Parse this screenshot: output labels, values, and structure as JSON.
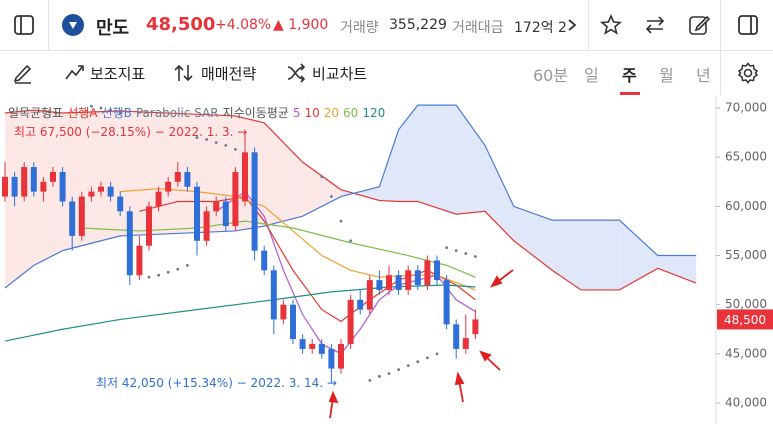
{
  "header": {
    "name": "만도",
    "price": "48,500",
    "change_pct": "+4.08%",
    "change": "▲ 1,900",
    "volume_label": "거래량",
    "volume": "355,229",
    "amount_label": "거래대금",
    "amount": "172억 2"
  },
  "toolbar": {
    "indicators": "보조지표",
    "strategy": "매매전략",
    "compare": "비교차트",
    "periods": [
      "60분",
      "일",
      "주",
      "월",
      "년"
    ],
    "selected_period": 2
  },
  "chart_data": {
    "type": "candlestick",
    "ylim": [
      38270,
      71330
    ],
    "yticks": [
      {
        "value": 40000,
        "label": "40,000"
      },
      {
        "value": 45000,
        "label": "45,000"
      },
      {
        "value": 50000,
        "label": "50,000"
      },
      {
        "value": 55000,
        "label": "55,000"
      },
      {
        "value": 60000,
        "label": "60,000"
      },
      {
        "value": 65000,
        "label": "65,000"
      },
      {
        "value": 70000,
        "label": "70,000"
      }
    ],
    "grid": false,
    "up_color": "#e8333b",
    "down_color": "#2f6fd8",
    "candles": {
      "open": [
        61000,
        63000,
        61000,
        64000,
        61500,
        62500,
        63500,
        60500,
        57000,
        61000,
        61500,
        62000,
        61000,
        59500,
        53000,
        56000,
        60000,
        61500,
        62500,
        63500,
        62000,
        56500,
        59500,
        60500,
        58000,
        60500,
        65500,
        55500,
        53500,
        48500,
        50000,
        46500,
        45500,
        46000,
        45500,
        43500,
        46000,
        50500,
        49500,
        52500,
        51500,
        53000,
        51500,
        53500,
        52000,
        54500,
        52500,
        48000,
        45500,
        47000
      ],
      "high": [
        64500,
        63500,
        64500,
        64500,
        63000,
        64000,
        64000,
        61000,
        61500,
        62000,
        62500,
        62500,
        61500,
        60000,
        57000,
        60500,
        62000,
        63000,
        64500,
        64000,
        62500,
        60000,
        61000,
        61000,
        64000,
        67500,
        66000,
        56000,
        54000,
        50500,
        50500,
        47000,
        46500,
        46500,
        46000,
        46500,
        51000,
        51500,
        53000,
        53500,
        54000,
        53500,
        54000,
        54000,
        55000,
        55000,
        53000,
        48500,
        49000,
        49500
      ],
      "low": [
        60500,
        60000,
        60500,
        61000,
        60500,
        62000,
        60000,
        55500,
        56500,
        60500,
        61000,
        60500,
        59000,
        52000,
        52500,
        55500,
        59500,
        61000,
        62000,
        61500,
        55000,
        56000,
        59000,
        57500,
        57500,
        60000,
        54500,
        53000,
        47000,
        48000,
        46000,
        45000,
        45000,
        44500,
        42050,
        43000,
        45500,
        49000,
        49000,
        51000,
        51000,
        51000,
        51000,
        51500,
        51500,
        52000,
        47500,
        44500,
        45000,
        46500
      ],
      "close": [
        63000,
        61000,
        64000,
        61500,
        62500,
        63500,
        60500,
        57000,
        61000,
        61500,
        62000,
        61000,
        59500,
        53000,
        56000,
        60000,
        61500,
        62500,
        63500,
        62000,
        56500,
        59500,
        60500,
        58000,
        63500,
        65500,
        55500,
        53500,
        48500,
        50000,
        46500,
        45500,
        46000,
        45000,
        43500,
        46000,
        50500,
        49500,
        52500,
        51500,
        53000,
        51500,
        53500,
        52000,
        54500,
        52500,
        48000,
        45500,
        46600,
        48500
      ]
    },
    "ichimoku_label": "일목균형표",
    "cloud": {
      "x": [
        0,
        3,
        6,
        12,
        24,
        27,
        31,
        35,
        39,
        41,
        43,
        47,
        50,
        53,
        57,
        60,
        64,
        68,
        72
      ],
      "up_fill": "#fde8e8",
      "down_fill": "#dfe7f8",
      "series": [
        {
          "name": "선행A",
          "color": "#e53935",
          "values": [
            69500,
            69800,
            69500,
            69700,
            69200,
            68500,
            64500,
            61700,
            60600,
            60500,
            60500,
            59200,
            59500,
            56500,
            53500,
            51500,
            51500,
            53700,
            52200
          ]
        },
        {
          "name": "선행B",
          "color": "#4a7bd6",
          "values": [
            51700,
            54000,
            55500,
            57000,
            57500,
            58000,
            59000,
            61000,
            62000,
            67800,
            70300,
            70300,
            66200,
            60000,
            58600,
            58600,
            58600,
            55000,
            55000
          ]
        }
      ]
    },
    "sar": {
      "name": "Parabolic SAR",
      "color": "#6b7a90",
      "x": [
        9,
        10,
        11,
        12,
        15,
        16,
        17,
        18,
        19,
        20,
        21,
        22,
        23,
        24,
        33,
        34,
        35,
        36,
        38,
        39,
        40,
        41,
        42,
        43,
        44,
        45,
        46,
        47,
        48,
        49
      ],
      "values": [
        70200,
        70000,
        69800,
        69500,
        52800,
        53000,
        53300,
        53600,
        54000,
        67000,
        66800,
        66500,
        66200,
        65800,
        63000,
        61000,
        58500,
        56500,
        42300,
        42700,
        43000,
        43400,
        43800,
        44200,
        44600,
        45000,
        55800,
        55500,
        55200,
        54900
      ]
    },
    "ma_label": "지수이동평균",
    "moving_averages": [
      {
        "name": "5",
        "color": "#b05cd6",
        "x": [
          22,
          25,
          27,
          29,
          31,
          33,
          35,
          37,
          39,
          41,
          43,
          45,
          47,
          49
        ],
        "values": [
          59500,
          61500,
          59000,
          53500,
          49000,
          46000,
          45000,
          47500,
          50500,
          52000,
          52500,
          53000,
          50500,
          49300
        ]
      },
      {
        "name": "10",
        "color": "#e53935",
        "x": [
          14,
          18,
          22,
          25,
          27,
          30,
          33,
          35,
          38,
          41,
          44,
          47,
          49
        ],
        "values": [
          59500,
          60500,
          60500,
          61000,
          58500,
          53500,
          49500,
          48300,
          50500,
          52500,
          53500,
          52000,
          50500
        ]
      },
      {
        "name": "20",
        "color": "#f0a030",
        "x": [
          12,
          16,
          20,
          24,
          27,
          30,
          33,
          36,
          39,
          42,
          45,
          49
        ],
        "values": [
          61500,
          61800,
          61500,
          61000,
          60000,
          57500,
          55000,
          53500,
          52800,
          53000,
          53000,
          51500
        ]
      },
      {
        "name": "60",
        "color": "#7cbf4a",
        "x": [
          8,
          14,
          20,
          25,
          30,
          36,
          42,
          46,
          49
        ],
        "values": [
          57800,
          57500,
          57800,
          58500,
          57800,
          56300,
          55000,
          54000,
          52800
        ]
      },
      {
        "name": "120",
        "color": "#1f8f8a",
        "x": [
          0,
          6,
          12,
          20,
          28,
          34,
          40,
          46,
          49
        ],
        "values": [
          46300,
          47500,
          48500,
          49500,
          50500,
          51300,
          51800,
          52000,
          51800
        ]
      }
    ],
    "annotations": [
      {
        "text": "최고 67,500 (−28.15%) − 2022. 1. 3. →",
        "color": "#e8333b"
      },
      {
        "text": "최저 42,050 (+15.34%) − 2022. 3. 14. →",
        "color": "#2f6fd8"
      }
    ]
  }
}
